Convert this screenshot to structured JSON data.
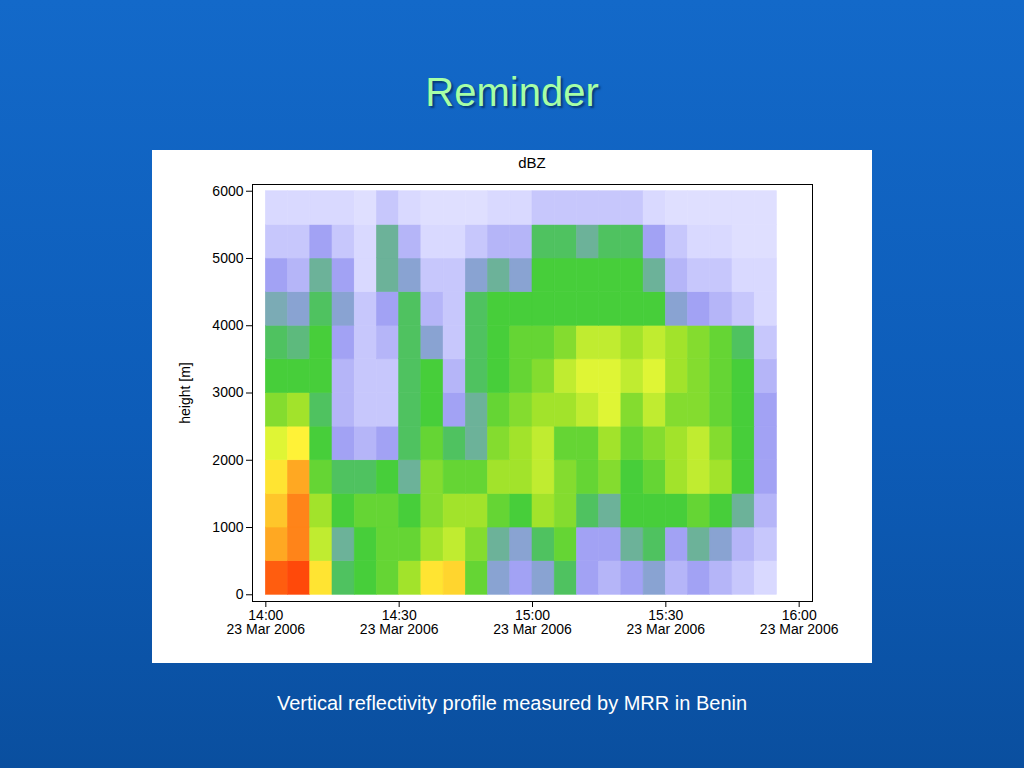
{
  "title": "Reminder",
  "caption": "Vertical reflectivity profile measured by MRR in Benin",
  "chart_data": {
    "type": "heatmap",
    "title": "dBZ",
    "ylabel": "height [m]",
    "xlim": [
      "2006-03-23T13:57",
      "2006-03-23T16:03"
    ],
    "ylim": [
      -100,
      6100
    ],
    "xticks": [
      {
        "value": "2006-03-23T14:00",
        "label": "14:00\n23 Mar 2006"
      },
      {
        "value": "2006-03-23T14:30",
        "label": "14:30\n23 Mar 2006"
      },
      {
        "value": "2006-03-23T15:00",
        "label": "15:00\n23 Mar 2006"
      },
      {
        "value": "2006-03-23T15:30",
        "label": "15:30\n23 Mar 2006"
      },
      {
        "value": "2006-03-23T16:00",
        "label": "16:00\n23 Mar 2006"
      }
    ],
    "yticks": [
      0,
      1000,
      2000,
      3000,
      4000,
      5000,
      6000
    ],
    "x_edges": [
      "2006-03-23T14:00",
      "2006-03-23T14:05",
      "2006-03-23T14:10",
      "2006-03-23T14:15",
      "2006-03-23T14:20",
      "2006-03-23T14:25",
      "2006-03-23T14:30",
      "2006-03-23T14:35",
      "2006-03-23T14:40",
      "2006-03-23T14:45",
      "2006-03-23T14:50",
      "2006-03-23T14:55",
      "2006-03-23T15:00",
      "2006-03-23T15:05",
      "2006-03-23T15:10",
      "2006-03-23T15:15",
      "2006-03-23T15:20",
      "2006-03-23T15:25",
      "2006-03-23T15:30",
      "2006-03-23T15:35",
      "2006-03-23T15:40",
      "2006-03-23T15:45",
      "2006-03-23T15:50",
      "2006-03-23T15:55"
    ],
    "y_edges": [
      0,
      500,
      1000,
      1500,
      2000,
      2500,
      3000,
      3500,
      4000,
      4500,
      5000,
      5500,
      6000
    ],
    "z": [
      [
        42,
        43,
        34,
        18,
        20,
        22,
        26,
        34,
        35,
        22,
        14,
        12,
        14,
        18,
        12,
        10,
        12,
        14,
        10,
        12,
        10,
        8,
        6
      ],
      [
        38,
        40,
        28,
        16,
        20,
        22,
        22,
        26,
        28,
        24,
        16,
        14,
        18,
        22,
        12,
        12,
        16,
        18,
        12,
        16,
        14,
        10,
        8
      ],
      [
        36,
        40,
        26,
        20,
        22,
        22,
        20,
        24,
        26,
        26,
        22,
        20,
        26,
        24,
        18,
        16,
        20,
        20,
        20,
        22,
        20,
        16,
        10
      ],
      [
        34,
        38,
        22,
        18,
        18,
        20,
        16,
        24,
        22,
        22,
        26,
        26,
        28,
        24,
        22,
        24,
        20,
        22,
        26,
        28,
        26,
        20,
        12
      ],
      [
        30,
        33,
        20,
        12,
        10,
        12,
        18,
        22,
        18,
        16,
        24,
        26,
        28,
        22,
        22,
        26,
        22,
        24,
        26,
        28,
        24,
        20,
        12
      ],
      [
        24,
        26,
        18,
        10,
        8,
        8,
        18,
        20,
        12,
        16,
        22,
        24,
        26,
        26,
        28,
        30,
        24,
        28,
        24,
        24,
        22,
        20,
        12
      ],
      [
        20,
        20,
        20,
        10,
        8,
        8,
        18,
        20,
        10,
        18,
        20,
        22,
        24,
        28,
        30,
        30,
        28,
        30,
        26,
        24,
        22,
        20,
        10
      ],
      [
        18,
        17,
        20,
        12,
        8,
        10,
        18,
        14,
        8,
        18,
        20,
        22,
        22,
        24,
        28,
        28,
        26,
        28,
        26,
        24,
        22,
        18,
        8
      ],
      [
        15,
        14,
        18,
        14,
        8,
        12,
        18,
        10,
        8,
        18,
        20,
        20,
        20,
        20,
        20,
        20,
        20,
        20,
        14,
        12,
        10,
        8,
        6
      ],
      [
        12,
        10,
        16,
        12,
        6,
        16,
        14,
        8,
        8,
        14,
        16,
        14,
        20,
        20,
        20,
        20,
        20,
        16,
        10,
        8,
        8,
        6,
        6
      ],
      [
        8,
        8,
        12,
        8,
        6,
        16,
        10,
        6,
        6,
        8,
        10,
        10,
        18,
        18,
        16,
        18,
        18,
        12,
        8,
        6,
        6,
        5,
        5
      ],
      [
        6,
        6,
        6,
        6,
        5,
        8,
        6,
        5,
        5,
        5,
        6,
        6,
        8,
        8,
        8,
        8,
        8,
        6,
        5,
        5,
        5,
        5,
        5
      ]
    ],
    "zlim": [
      0,
      45
    ]
  }
}
